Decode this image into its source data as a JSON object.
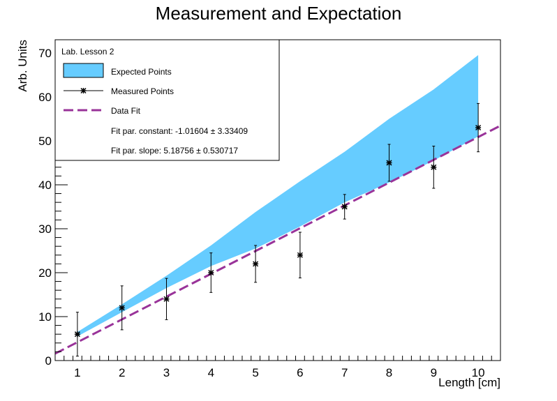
{
  "chart_data": {
    "type": "line",
    "title": "Measurement and Expectation",
    "xlabel": "Length [cm]",
    "ylabel": "Arb. Units",
    "xlim": [
      0.5,
      10.5
    ],
    "ylim": [
      0,
      73
    ],
    "x_ticks": [
      1,
      2,
      3,
      4,
      5,
      6,
      7,
      8,
      9,
      10
    ],
    "y_ticks": [
      0,
      10,
      20,
      30,
      40,
      50,
      60,
      70
    ],
    "legend_header": "Lab. Lesson 2",
    "legend_position": "top-left",
    "colors": {
      "band": "#66ccff",
      "fit": "#993399",
      "points": "#000000"
    },
    "expected_band": {
      "name": "Expected Points",
      "x": [
        1,
        2,
        3,
        4,
        5,
        6,
        7,
        8,
        9,
        10
      ],
      "lower": [
        5.5,
        11,
        16.5,
        21.5,
        25.5,
        30.5,
        36,
        40.5,
        45.5,
        51
      ],
      "upper": [
        6.5,
        12.8,
        19.3,
        26.2,
        33.8,
        40.8,
        47.5,
        55,
        61.7,
        69.5
      ]
    },
    "measured": {
      "name": "Measured Points",
      "x": [
        1,
        2,
        3,
        4,
        5,
        6,
        7,
        8,
        9,
        10
      ],
      "y": [
        6,
        12,
        14,
        20,
        22,
        24,
        35,
        45,
        44,
        53
      ],
      "err": [
        5,
        5,
        4.7,
        4.5,
        4.2,
        5.2,
        2.8,
        4.2,
        4.8,
        5.5
      ]
    },
    "fit": {
      "name": "Data Fit",
      "constant": -1.01604,
      "slope": 5.18756,
      "x_range": [
        0.5,
        10.5
      ],
      "constant_label": "Fit par. constant: -1.01604 ± 3.33409",
      "slope_label": "Fit par. slope: 5.18756 ± 0.530717"
    }
  }
}
